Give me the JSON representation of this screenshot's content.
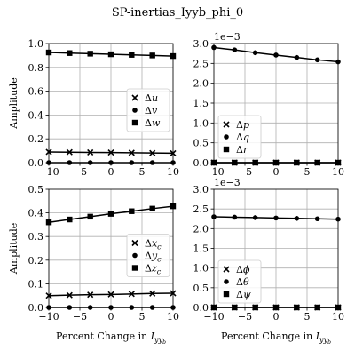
{
  "figure": {
    "title": "SP-inertias_Iyyb_phi_0"
  },
  "chart_data": [
    {
      "type": "line",
      "panel": "top-left",
      "x": [
        -10,
        -6.67,
        -3.33,
        0,
        3.33,
        6.67,
        10
      ],
      "xlim": [
        -10,
        10
      ],
      "ylim": [
        0,
        1.0
      ],
      "xticks": [
        "−10",
        "−5",
        "0",
        "5",
        "10"
      ],
      "xtick_values": [
        -10,
        -5,
        0,
        5,
        10
      ],
      "yticks": [
        "0.0",
        "0.2",
        "0.4",
        "0.6",
        "0.8",
        "1.0"
      ],
      "ytick_values": [
        0,
        0.2,
        0.4,
        0.6,
        0.8,
        1.0
      ],
      "xlabel": "",
      "ylabel": "Amplitude",
      "exponent": "",
      "grid": true,
      "legend": "center-right",
      "series": [
        {
          "name": "Δu",
          "marker": "x",
          "values": [
            0.09,
            0.088,
            0.086,
            0.085,
            0.083,
            0.081,
            0.079
          ]
        },
        {
          "name": "Δv",
          "marker": "circle",
          "values": [
            0.0,
            0.0,
            0.0,
            0.0,
            0.0,
            0.0,
            0.0
          ]
        },
        {
          "name": "Δw",
          "marker": "square",
          "values": [
            0.925,
            0.92,
            0.915,
            0.91,
            0.905,
            0.9,
            0.895
          ]
        }
      ]
    },
    {
      "type": "line",
      "panel": "top-right",
      "x": [
        -10,
        -6.67,
        -3.33,
        0,
        3.33,
        6.67,
        10
      ],
      "xlim": [
        -10,
        10
      ],
      "ylim": [
        0,
        3.0
      ],
      "xticks": [
        "−10",
        "−5",
        "0",
        "5",
        "10"
      ],
      "xtick_values": [
        -10,
        -5,
        0,
        5,
        10
      ],
      "yticks": [
        "0.0",
        "0.5",
        "1.0",
        "1.5",
        "2.0",
        "2.5",
        "3.0"
      ],
      "ytick_values": [
        0,
        0.5,
        1.0,
        1.5,
        2.0,
        2.5,
        3.0
      ],
      "xlabel": "",
      "ylabel": "",
      "exponent": "1e−3",
      "grid": true,
      "legend": "lower-left",
      "series": [
        {
          "name": "Δp",
          "marker": "x",
          "values": [
            0.0,
            0.0,
            0.0,
            0.0,
            0.0,
            0.0,
            0.0
          ]
        },
        {
          "name": "Δq",
          "marker": "circle",
          "values": [
            2.9,
            2.84,
            2.77,
            2.71,
            2.65,
            2.59,
            2.54
          ]
        },
        {
          "name": "Δr",
          "marker": "square",
          "values": [
            0.0,
            0.0,
            0.0,
            0.0,
            0.0,
            0.0,
            0.0
          ]
        }
      ]
    },
    {
      "type": "line",
      "panel": "bottom-left",
      "x": [
        -10,
        -6.67,
        -3.33,
        0,
        3.33,
        6.67,
        10
      ],
      "xlim": [
        -10,
        10
      ],
      "ylim": [
        0,
        0.5
      ],
      "xticks": [
        "−10",
        "−5",
        "0",
        "5",
        "10"
      ],
      "xtick_values": [
        -10,
        -5,
        0,
        5,
        10
      ],
      "yticks": [
        "0.0",
        "0.1",
        "0.2",
        "0.3",
        "0.4",
        "0.5"
      ],
      "ytick_values": [
        0,
        0.1,
        0.2,
        0.3,
        0.4,
        0.5
      ],
      "xlabel": "Percent Change in I_yy_b",
      "ylabel": "Amplitude",
      "exponent": "",
      "grid": true,
      "legend": "center-right",
      "series": [
        {
          "name": "Δx_c",
          "marker": "x",
          "values": [
            0.05,
            0.052,
            0.054,
            0.055,
            0.057,
            0.059,
            0.06
          ]
        },
        {
          "name": "Δy_c",
          "marker": "circle",
          "values": [
            0.0,
            0.0,
            0.0,
            0.0,
            0.0,
            0.0,
            0.0
          ]
        },
        {
          "name": "Δz_c",
          "marker": "square",
          "values": [
            0.36,
            0.372,
            0.384,
            0.396,
            0.407,
            0.418,
            0.428
          ]
        }
      ]
    },
    {
      "type": "line",
      "panel": "bottom-right",
      "x": [
        -10,
        -6.67,
        -3.33,
        0,
        3.33,
        6.67,
        10
      ],
      "xlim": [
        -10,
        10
      ],
      "ylim": [
        0,
        3.0
      ],
      "xticks": [
        "−10",
        "−5",
        "0",
        "5",
        "10"
      ],
      "xtick_values": [
        -10,
        -5,
        0,
        5,
        10
      ],
      "yticks": [
        "0.0",
        "0.5",
        "1.0",
        "1.5",
        "2.0",
        "2.5",
        "3.0"
      ],
      "ytick_values": [
        0,
        0.5,
        1.0,
        1.5,
        2.0,
        2.5,
        3.0
      ],
      "xlabel": "Percent Change in I_yy_b",
      "ylabel": "",
      "exponent": "1e−3",
      "grid": true,
      "legend": "lower-left",
      "series": [
        {
          "name": "Δϕ",
          "marker": "x",
          "values": [
            0.0,
            0.0,
            0.0,
            0.0,
            0.0,
            0.0,
            0.0
          ]
        },
        {
          "name": "Δθ",
          "marker": "circle",
          "values": [
            2.3,
            2.29,
            2.28,
            2.27,
            2.26,
            2.25,
            2.24
          ]
        },
        {
          "name": "Δψ",
          "marker": "square",
          "values": [
            0.0,
            0.0,
            0.0,
            0.0,
            0.0,
            0.0,
            0.0
          ]
        }
      ]
    }
  ]
}
